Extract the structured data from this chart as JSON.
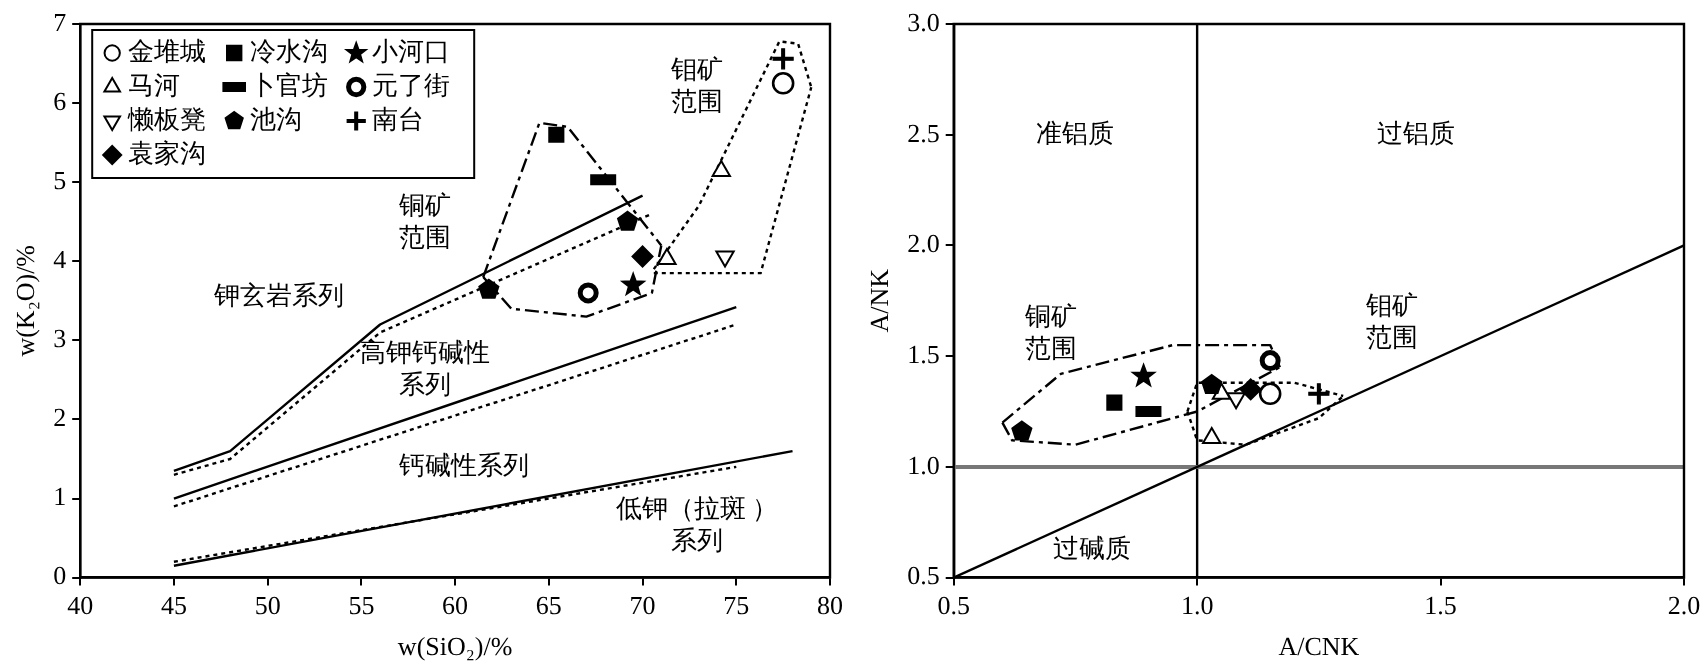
{
  "chart_data": [
    {
      "type": "scatter",
      "xlabel": "w(SiO₂)/%",
      "ylabel": "w(K₂O)/%",
      "xlim": [
        40,
        80
      ],
      "ylim": [
        0,
        7
      ],
      "xticks": [
        40,
        45,
        50,
        55,
        60,
        65,
        70,
        75,
        80
      ],
      "yticks": [
        0,
        1,
        2,
        3,
        4,
        5,
        6,
        7
      ],
      "grid": false,
      "legend": "top left",
      "series": [
        {
          "name": "金堆城",
          "color": "#000000",
          "marker": "circle",
          "x": [
            77.5
          ],
          "values": [
            6.25
          ]
        },
        {
          "name": "冷水沟",
          "color": "#000000",
          "marker": "square",
          "x": [
            65.4
          ],
          "values": [
            5.6
          ]
        },
        {
          "name": "小河口",
          "color": "#000000",
          "marker": "star",
          "x": [
            69.5
          ],
          "values": [
            3.7
          ]
        },
        {
          "name": "马河",
          "color": "#000000",
          "marker": "triangle",
          "x": [
            71.3,
            74.2
          ],
          "values": [
            4.03,
            5.14
          ]
        },
        {
          "name": "卜官坊",
          "color": "#000000",
          "x": [
            67.9
          ],
          "values": [
            5.03
          ]
        },
        {
          "name": "元了街",
          "color": "#000000",
          "x": [
            67.1
          ],
          "values": [
            3.6
          ]
        },
        {
          "name": "懒板凳",
          "color": "#000000",
          "x": [
            74.4
          ],
          "values": [
            4.06
          ]
        },
        {
          "name": "池沟",
          "color": "#000000",
          "x": [
            69.2,
            61.8
          ],
          "values": [
            4.5,
            3.64
          ]
        },
        {
          "name": "南台",
          "color": "#000000",
          "marker": "cross",
          "x": [
            77.5
          ],
          "values": [
            6.56
          ]
        },
        {
          "name": "袁家沟",
          "color": "#000000",
          "marker": "diamond",
          "x": [
            70.0
          ],
          "values": [
            4.06
          ]
        },
        {
          "type": "line",
          "color": "#000000",
          "line_style": "solid",
          "x": [
            45,
            48,
            56,
            70
          ],
          "values": [
            1.35,
            1.6,
            3.2,
            4.83
          ]
        },
        {
          "type": "line",
          "color": "#000000",
          "line_style": "dotted",
          "x": [
            45,
            48,
            56,
            70.5
          ],
          "values": [
            1.3,
            1.5,
            3.1,
            4.6
          ]
        },
        {
          "type": "line",
          "color": "#000000",
          "line_style": "solid",
          "x": [
            45,
            75
          ],
          "values": [
            1.0,
            3.42
          ]
        },
        {
          "type": "line",
          "color": "#000000",
          "line_style": "dotted",
          "x": [
            45,
            75
          ],
          "values": [
            0.9,
            3.2
          ]
        },
        {
          "type": "line",
          "color": "#000000",
          "line_style": "solid",
          "x": [
            45,
            78
          ],
          "values": [
            0.15,
            1.6
          ]
        },
        {
          "type": "line",
          "color": "#000000",
          "line_style": "dotted",
          "x": [
            45,
            75
          ],
          "values": [
            0.2,
            1.4
          ]
        },
        {
          "type": "line",
          "color": "#000000",
          "line_style": "dashed",
          "x": [
            61.5,
            64.5,
            66,
            71
          ],
          "values": [
            3.8,
            5.75,
            5.7,
            4.2
          ]
        },
        {
          "type": "line",
          "color": "#000000",
          "line_style": "dashed",
          "x": [
            61.5,
            63,
            67,
            70.5,
            71
          ],
          "values": [
            3.8,
            3.4,
            3.3,
            3.6,
            4.2
          ]
        },
        {
          "type": "line",
          "color": "#000000",
          "line_style": "dotted",
          "x": [
            70.6,
            73,
            77.3,
            78.3,
            79
          ],
          "values": [
            3.9,
            4.7,
            6.78,
            6.75,
            6.2
          ]
        },
        {
          "type": "line",
          "color": "#000000",
          "line_style": "dotted",
          "x": [
            70.6,
            76.3,
            79
          ],
          "values": [
            3.85,
            3.85,
            6.2
          ]
        }
      ],
      "annotations": [
        "铜矿范围",
        "钼矿范围",
        "钾玄岩系列",
        "高钾钙碱性系列",
        "钙碱性系列",
        "低钾（拉斑 ）系列"
      ]
    },
    {
      "type": "scatter",
      "xlabel": "A/CNK",
      "ylabel": "A/NK",
      "xlim": [
        0.5,
        2.0
      ],
      "ylim": [
        0.5,
        3.0
      ],
      "xticks": [
        0.5,
        {
          "value": 1,
          "label": "1.0"
        },
        1.5,
        {
          "value": 2,
          "label": "2.0"
        }
      ],
      "yticks": [
        0.5,
        {
          "value": 1,
          "label": "1.0"
        },
        1.5,
        {
          "value": 2,
          "label": "2.0"
        },
        2.5,
        {
          "value": 3,
          "label": "3.0"
        }
      ],
      "grid": false,
      "ref_lines": [
        {
          "axis": "x",
          "value": 1.0,
          "color": "#000000"
        },
        {
          "axis": "y",
          "value": 1.0,
          "color": "#777777"
        }
      ],
      "series": [
        {
          "color": "#000000",
          "marker": "circle",
          "x": [
            1.15
          ],
          "values": [
            1.33
          ]
        },
        {
          "color": "#000000",
          "marker": "square",
          "x": [
            0.83
          ],
          "values": [
            1.29
          ]
        },
        {
          "color": "#000000",
          "marker": "star",
          "x": [
            0.89
          ],
          "values": [
            1.41
          ]
        },
        {
          "color": "#000000",
          "marker": "triangle",
          "x": [
            1.05,
            1.03
          ],
          "values": [
            1.33,
            1.13
          ]
        },
        {
          "color": "#000000",
          "x": [
            0.9
          ],
          "values": [
            1.25
          ]
        },
        {
          "color": "#000000",
          "x": [
            1.15
          ],
          "values": [
            1.48
          ]
        },
        {
          "color": "#000000",
          "x": [
            1.08
          ],
          "values": [
            1.31
          ]
        },
        {
          "color": "#000000",
          "x": [
            0.64,
            1.03
          ],
          "values": [
            1.16,
            1.37
          ]
        },
        {
          "color": "#000000",
          "marker": "cross",
          "x": [
            1.25
          ],
          "values": [
            1.33
          ]
        },
        {
          "color": "#000000",
          "marker": "diamond",
          "x": [
            1.11
          ],
          "values": [
            1.35
          ]
        },
        {
          "type": "line",
          "color": "#000000",
          "line_style": "solid",
          "x": [
            0.5,
            2.0
          ],
          "values": [
            0.5,
            2.0
          ]
        },
        {
          "type": "line",
          "color": "#000000",
          "line_style": "dashed",
          "x": [
            0.6,
            0.72,
            0.95,
            1.15,
            1.17
          ],
          "values": [
            1.2,
            1.42,
            1.55,
            1.55,
            1.45
          ]
        },
        {
          "type": "line",
          "color": "#000000",
          "line_style": "dashed",
          "x": [
            0.6,
            0.62,
            0.75,
            1.0,
            1.17
          ],
          "values": [
            1.2,
            1.12,
            1.1,
            1.25,
            1.45
          ]
        },
        {
          "type": "line",
          "color": "#000000",
          "line_style": "dotted",
          "x": [
            0.98,
            1.0,
            1.2,
            1.3
          ],
          "values": [
            1.25,
            1.38,
            1.38,
            1.32
          ]
        },
        {
          "type": "line",
          "color": "#000000",
          "line_style": "dotted",
          "x": [
            0.98,
            1.0,
            1.1,
            1.25,
            1.3
          ],
          "values": [
            1.25,
            1.12,
            1.1,
            1.22,
            1.32
          ]
        }
      ],
      "annotations": [
        "准铝质",
        "过铝质",
        "铜矿范围",
        "钼矿范围",
        "过碱质"
      ]
    }
  ]
}
